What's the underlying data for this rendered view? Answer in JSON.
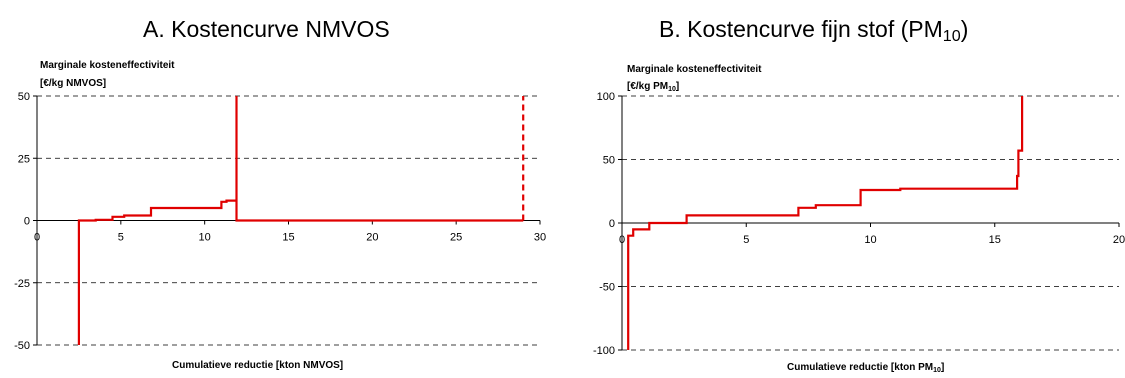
{
  "chart_data": [
    {
      "type": "line",
      "panel_title": "A. Kostencurve NMVOS",
      "ylabel_line1": "Marginale kosteneffectiviteit",
      "ylabel_line2": "[€/kg NMVOS]",
      "xlabel": "Cumulatieve reductie [kton NMVOS]",
      "xlim": [
        0,
        30
      ],
      "ylim": [
        -50,
        50
      ],
      "x_ticks": [
        0,
        5,
        10,
        15,
        20,
        25,
        30
      ],
      "y_ticks": [
        50,
        25,
        0,
        -25,
        -50
      ],
      "grid": "horizontal dashed",
      "line_color": "#e00000",
      "series": [
        {
          "style": "step",
          "points": [
            [
              2.5,
              -50
            ],
            [
              2.5,
              0
            ],
            [
              3.5,
              0
            ],
            [
              3.5,
              0.3
            ],
            [
              4.5,
              0.3
            ],
            [
              4.5,
              1.5
            ],
            [
              5.2,
              1.5
            ],
            [
              5.2,
              2
            ],
            [
              6.8,
              2
            ],
            [
              6.8,
              5
            ],
            [
              11,
              5
            ],
            [
              11,
              7.5
            ],
            [
              11.3,
              7.5
            ],
            [
              11.3,
              8
            ],
            [
              11.9,
              8
            ],
            [
              11.9,
              50
            ],
            [
              11.9,
              0
            ],
            [
              29,
              0
            ]
          ]
        },
        {
          "style": "dashed",
          "points": [
            [
              29,
              0
            ],
            [
              29,
              50
            ]
          ]
        }
      ]
    },
    {
      "type": "line",
      "panel_title_main": "B. Kostencurve fijn stof (PM",
      "panel_title_sub": "10",
      "panel_title_end": ")",
      "ylabel_line1": "Marginale kosteneffectiviteit",
      "ylabel_line2_main": "[€/kg PM",
      "ylabel_line2_sub": "10",
      "ylabel_line2_end": "]",
      "xlabel_main": "Cumulatieve reductie [kton PM",
      "xlabel_sub": "10",
      "xlabel_end": "]",
      "xlim": [
        0,
        20
      ],
      "ylim": [
        -100,
        100
      ],
      "x_ticks": [
        0,
        5,
        10,
        15,
        20
      ],
      "y_ticks": [
        100,
        50,
        0,
        -50,
        -100
      ],
      "grid": "horizontal dashed",
      "line_color": "#e00000",
      "series": [
        {
          "style": "step",
          "points": [
            [
              0.25,
              -100
            ],
            [
              0.25,
              -10
            ],
            [
              0.45,
              -10
            ],
            [
              0.45,
              -5
            ],
            [
              1.1,
              -5
            ],
            [
              1.1,
              0
            ],
            [
              2.6,
              0
            ],
            [
              2.6,
              6
            ],
            [
              7.1,
              6
            ],
            [
              7.1,
              12
            ],
            [
              7.8,
              12
            ],
            [
              7.8,
              14
            ],
            [
              9.6,
              14
            ],
            [
              9.6,
              26
            ],
            [
              11.2,
              26
            ],
            [
              11.2,
              27
            ],
            [
              15.9,
              27
            ],
            [
              15.9,
              37
            ],
            [
              15.95,
              37
            ],
            [
              15.95,
              57
            ],
            [
              16.1,
              57
            ],
            [
              16.1,
              100
            ]
          ]
        }
      ]
    }
  ]
}
